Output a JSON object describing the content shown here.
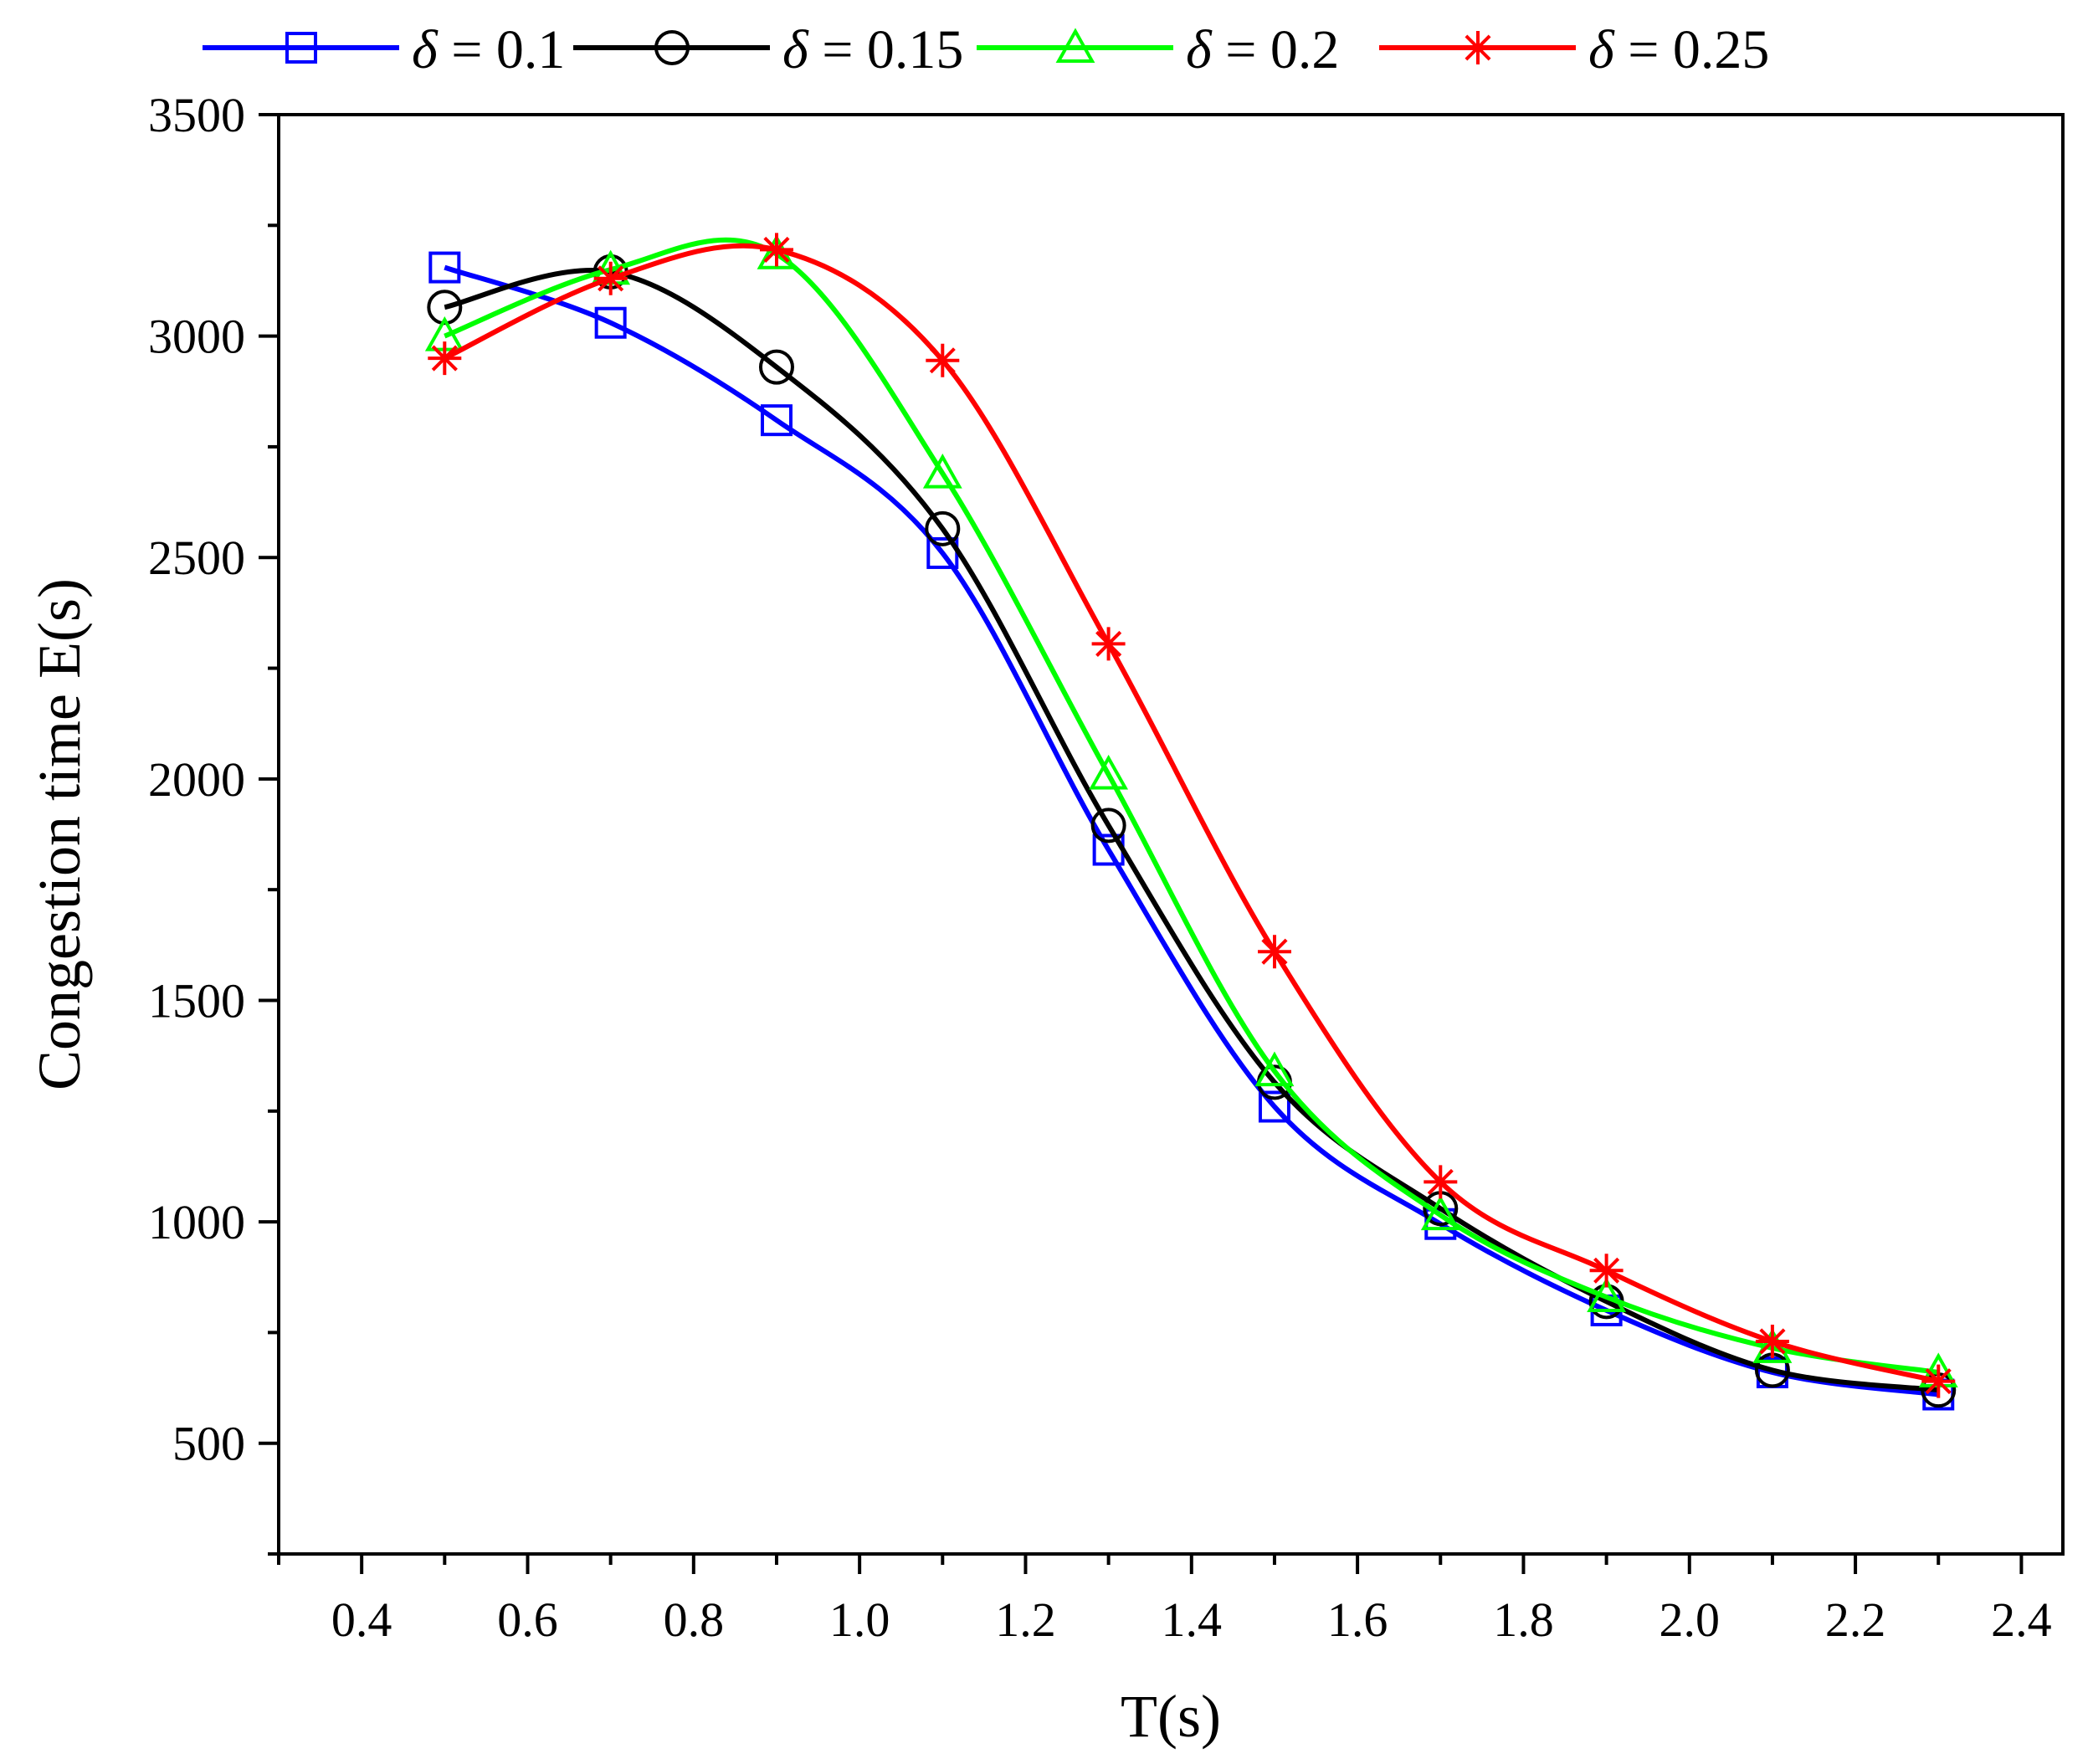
{
  "chart_data": {
    "type": "line",
    "title": "",
    "xlabel": "T(s)",
    "ylabel": "Congestion time E(s)",
    "xlim": [
      0.3,
      2.45
    ],
    "ylim": [
      250,
      3500
    ],
    "xticks": [
      "0.4",
      "0.6",
      "0.8",
      "1.0",
      "1.2",
      "1.4",
      "1.6",
      "1.8",
      "2.0",
      "2.2",
      "2.4"
    ],
    "xtick_values": [
      0.4,
      0.6,
      0.8,
      1.0,
      1.2,
      1.4,
      1.6,
      1.8,
      2.0,
      2.2,
      2.4
    ],
    "yticks": [
      "500",
      "1000",
      "1500",
      "2000",
      "2500",
      "3000",
      "3500"
    ],
    "ytick_values": [
      500,
      1000,
      1500,
      2000,
      2500,
      3000,
      3500
    ],
    "legend_position": "top",
    "x": [
      0.5,
      0.7,
      0.9,
      1.1,
      1.3,
      1.5,
      1.7,
      1.9,
      2.1,
      2.3
    ],
    "series": [
      {
        "name": "δ = 0.1",
        "symbol": "δ",
        "rest": " = 0.1",
        "color": "#0000ff",
        "marker": "square",
        "values": [
          3155,
          3030,
          2810,
          2510,
          1840,
          1260,
          995,
          800,
          660,
          610
        ]
      },
      {
        "name": "δ = 0.15",
        "symbol": "δ",
        "rest": " = 0.15",
        "color": "#000000",
        "marker": "circle",
        "values": [
          3065,
          3145,
          2930,
          2565,
          1895,
          1315,
          1030,
          820,
          665,
          620
        ]
      },
      {
        "name": "δ = 0.2",
        "symbol": "δ",
        "rest": " = 0.2",
        "color": "#00ff00",
        "marker": "triangle",
        "values": [
          3000,
          3150,
          3185,
          2690,
          2010,
          1340,
          1015,
          830,
          715,
          660
        ]
      },
      {
        "name": "δ = 0.25",
        "symbol": "δ",
        "rest": " = 0.25",
        "color": "#ff0000",
        "marker": "star",
        "values": [
          2950,
          3130,
          3195,
          2945,
          2305,
          1610,
          1090,
          890,
          730,
          640
        ]
      }
    ]
  }
}
